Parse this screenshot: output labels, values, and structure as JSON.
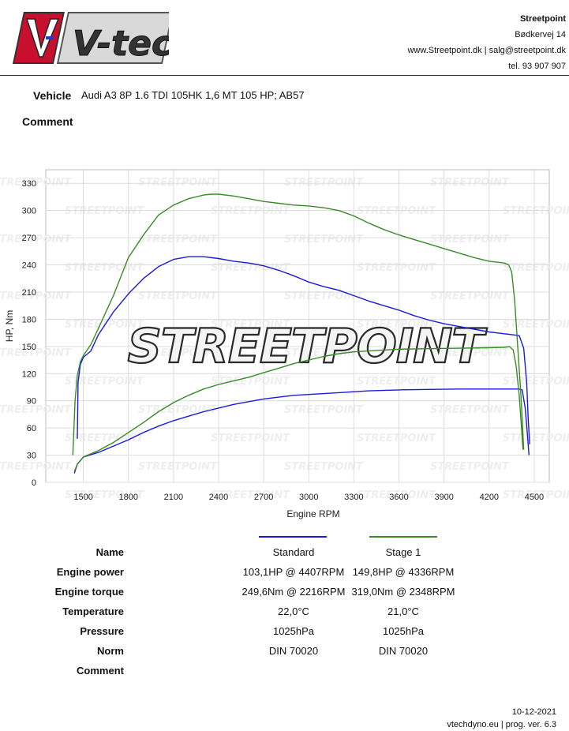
{
  "header": {
    "logo_text": "V-tech",
    "company": {
      "name": "Streetpoint",
      "street": "Bødkervej 14",
      "contact": "www.Streetpoint.dk | salg@streetpoint.dk",
      "phone": "tel. 93 907 907"
    }
  },
  "vehicle": {
    "label": "Vehicle",
    "value": "Audi A3 8P 1.6 TDI 105HK 1,6 MT 105 HP; AB57"
  },
  "comment": {
    "label": "Comment"
  },
  "chart_data": {
    "type": "line",
    "xlabel": "Engine RPM",
    "ylabel": "HP, Nm",
    "xlim": [
      1250,
      4600
    ],
    "ylim": [
      0,
      345
    ],
    "x_ticks": [
      1500,
      1800,
      2100,
      2400,
      2700,
      3000,
      3300,
      3600,
      3900,
      4200,
      4500
    ],
    "y_ticks": [
      0,
      30,
      60,
      90,
      120,
      150,
      180,
      210,
      240,
      270,
      300,
      330
    ],
    "watermark": "STREETPOINT",
    "grid": true,
    "series": [
      {
        "name": "Standard",
        "kind": "torque",
        "color": "#1a1adf",
        "points": [
          [
            1460,
            48
          ],
          [
            1465,
            110
          ],
          [
            1480,
            130
          ],
          [
            1500,
            138
          ],
          [
            1550,
            145
          ],
          [
            1600,
            163
          ],
          [
            1700,
            188
          ],
          [
            1800,
            208
          ],
          [
            1900,
            225
          ],
          [
            2000,
            238
          ],
          [
            2100,
            246
          ],
          [
            2200,
            249
          ],
          [
            2300,
            249
          ],
          [
            2400,
            247
          ],
          [
            2500,
            244
          ],
          [
            2600,
            242
          ],
          [
            2700,
            239
          ],
          [
            2800,
            234
          ],
          [
            2900,
            228
          ],
          [
            3000,
            221
          ],
          [
            3100,
            216
          ],
          [
            3200,
            212
          ],
          [
            3300,
            206
          ],
          [
            3400,
            200
          ],
          [
            3500,
            195
          ],
          [
            3600,
            190
          ],
          [
            3700,
            184
          ],
          [
            3800,
            179
          ],
          [
            3900,
            175
          ],
          [
            4000,
            172
          ],
          [
            4100,
            169
          ],
          [
            4200,
            166
          ],
          [
            4300,
            164
          ],
          [
            4400,
            162
          ],
          [
            4430,
            148
          ],
          [
            4450,
            110
          ],
          [
            4460,
            70
          ],
          [
            4470,
            42
          ]
        ]
      },
      {
        "name": "Standard",
        "kind": "power",
        "color": "#1a1adf",
        "points": [
          [
            1440,
            10
          ],
          [
            1460,
            20
          ],
          [
            1500,
            28
          ],
          [
            1600,
            33
          ],
          [
            1700,
            40
          ],
          [
            1800,
            47
          ],
          [
            1900,
            55
          ],
          [
            2000,
            62
          ],
          [
            2100,
            68
          ],
          [
            2200,
            73
          ],
          [
            2300,
            78
          ],
          [
            2400,
            82
          ],
          [
            2500,
            86
          ],
          [
            2600,
            89
          ],
          [
            2700,
            92
          ],
          [
            2800,
            94
          ],
          [
            2900,
            96
          ],
          [
            3000,
            97
          ],
          [
            3200,
            99
          ],
          [
            3400,
            101
          ],
          [
            3600,
            102
          ],
          [
            3800,
            102.5
          ],
          [
            4000,
            103
          ],
          [
            4200,
            103
          ],
          [
            4400,
            103
          ],
          [
            4420,
            102
          ],
          [
            4440,
            82
          ],
          [
            4455,
            52
          ],
          [
            4465,
            30
          ]
        ]
      },
      {
        "name": "Stage 1",
        "kind": "torque",
        "color": "#3a8a28",
        "points": [
          [
            1430,
            30
          ],
          [
            1445,
            90
          ],
          [
            1460,
            118
          ],
          [
            1480,
            133
          ],
          [
            1500,
            140
          ],
          [
            1550,
            152
          ],
          [
            1600,
            170
          ],
          [
            1700,
            206
          ],
          [
            1800,
            248
          ],
          [
            1900,
            273
          ],
          [
            2000,
            295
          ],
          [
            2100,
            306
          ],
          [
            2200,
            313
          ],
          [
            2300,
            317
          ],
          [
            2350,
            318
          ],
          [
            2400,
            318
          ],
          [
            2500,
            316
          ],
          [
            2600,
            313
          ],
          [
            2700,
            310
          ],
          [
            2800,
            308
          ],
          [
            2900,
            306
          ],
          [
            3000,
            305
          ],
          [
            3100,
            303
          ],
          [
            3200,
            300
          ],
          [
            3300,
            294
          ],
          [
            3400,
            286
          ],
          [
            3500,
            279
          ],
          [
            3600,
            273
          ],
          [
            3700,
            268
          ],
          [
            3800,
            263
          ],
          [
            3900,
            258
          ],
          [
            4000,
            253
          ],
          [
            4100,
            248
          ],
          [
            4200,
            244
          ],
          [
            4300,
            242
          ],
          [
            4330,
            240
          ],
          [
            4350,
            232
          ],
          [
            4370,
            200
          ],
          [
            4390,
            150
          ],
          [
            4410,
            100
          ],
          [
            4420,
            70
          ],
          [
            4430,
            36
          ]
        ]
      },
      {
        "name": "Stage 1",
        "kind": "power",
        "color": "#3a8a28",
        "points": [
          [
            1440,
            12
          ],
          [
            1460,
            20
          ],
          [
            1500,
            28
          ],
          [
            1600,
            35
          ],
          [
            1700,
            44
          ],
          [
            1800,
            55
          ],
          [
            1900,
            66
          ],
          [
            2000,
            78
          ],
          [
            2100,
            88
          ],
          [
            2200,
            96
          ],
          [
            2300,
            103
          ],
          [
            2400,
            108
          ],
          [
            2500,
            112
          ],
          [
            2600,
            116
          ],
          [
            2700,
            121
          ],
          [
            2800,
            126
          ],
          [
            2900,
            131
          ],
          [
            3000,
            135
          ],
          [
            3100,
            139
          ],
          [
            3200,
            142
          ],
          [
            3300,
            144
          ],
          [
            3400,
            145
          ],
          [
            3500,
            146
          ],
          [
            3600,
            147
          ],
          [
            3800,
            147.5
          ],
          [
            4000,
            148
          ],
          [
            4200,
            148.5
          ],
          [
            4300,
            149
          ],
          [
            4336,
            149.8
          ],
          [
            4360,
            146
          ],
          [
            4380,
            128
          ],
          [
            4400,
            96
          ],
          [
            4415,
            60
          ],
          [
            4425,
            36
          ]
        ]
      }
    ]
  },
  "results": {
    "labels": {
      "name": "Name",
      "power": "Engine power",
      "torque": "Engine torque",
      "temperature": "Temperature",
      "pressure": "Pressure",
      "norm": "Norm",
      "comment": "Comment"
    },
    "standard": {
      "name": "Standard",
      "color": "#1a1adf",
      "power": "103,1HP @ 4407RPM",
      "torque": "249,6Nm @ 2216RPM",
      "temperature": "22,0°C",
      "pressure": "1025hPa",
      "norm": "DIN 70020"
    },
    "stage1": {
      "name": "Stage 1",
      "color": "#3a8a28",
      "power": "149,8HP @ 4336RPM",
      "torque": "319,0Nm @ 2348RPM",
      "temperature": "21,0°C",
      "pressure": "1025hPa",
      "norm": "DIN 70020"
    }
  },
  "footer": {
    "date": "10-12-2021",
    "program": "vtechdyno.eu | prog. ver. 6.3"
  }
}
